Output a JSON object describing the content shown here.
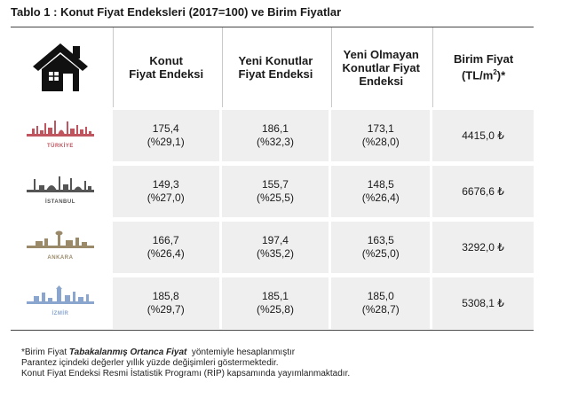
{
  "title": "Tablo 1 : Konut Fiyat Endeksleri (2017=100) ve Birim Fiyatlar",
  "headers": {
    "col0_icon": "house-icon",
    "col1": [
      "Konut",
      "Fiyat Endeksi"
    ],
    "col2": [
      "Yeni Konutlar",
      "Fiyat Endeksi"
    ],
    "col3": [
      "Yeni Olmayan",
      "Konutlar Fiyat",
      "Endeksi"
    ],
    "col4_main": "Birim Fiyat",
    "col4_unit_pre": "(TL/m",
    "col4_unit_sup": "2",
    "col4_unit_post": ")*"
  },
  "rows": [
    {
      "region": "TÜRKİYE",
      "color": "#c0555f",
      "konut": "175,4",
      "konut_pct": "(%29,1)",
      "yeni": "186,1",
      "yeni_pct": "(%32,3)",
      "yeni_olmayan": "173,1",
      "yeni_olmayan_pct": "(%28,0)",
      "birim": "4415,0 ₺"
    },
    {
      "region": "İSTANBUL",
      "color": "#555555",
      "konut": "149,3",
      "konut_pct": "(%27,0)",
      "yeni": "155,7",
      "yeni_pct": "(%25,5)",
      "yeni_olmayan": "148,5",
      "yeni_olmayan_pct": "(%26,4)",
      "birim": "6676,6 ₺"
    },
    {
      "region": "ANKARA",
      "color": "#9a8a6a",
      "konut": "166,7",
      "konut_pct": "(%26,4)",
      "yeni": "197,4",
      "yeni_pct": "(%35,2)",
      "yeni_olmayan": "163,5",
      "yeni_olmayan_pct": "(%25,0)",
      "birim": "3292,0 ₺"
    },
    {
      "region": "İZMİR",
      "color": "#8aa6cf",
      "konut": "185,8",
      "konut_pct": "(%29,7)",
      "yeni": "185,1",
      "yeni_pct": "(%25,8)",
      "yeni_olmayan": "185,0",
      "yeni_olmayan_pct": "(%28,7)",
      "birim": "5308,1 ₺"
    }
  ],
  "footer": {
    "line1_pre": "*Birim Fiyat ",
    "line1_em": "Tabakalanmış Ortanca Fiyat",
    "line1_post": "  yöntemiyle hesaplanmıştır",
    "line2": "Parantez içindeki değerler yıllık yüzde değişimleri göstermektedir.",
    "line3": "Konut Fiyat Endeksi Resmi İstatistik Programı (RİP) kapsamında yayımlanmaktadır."
  }
}
